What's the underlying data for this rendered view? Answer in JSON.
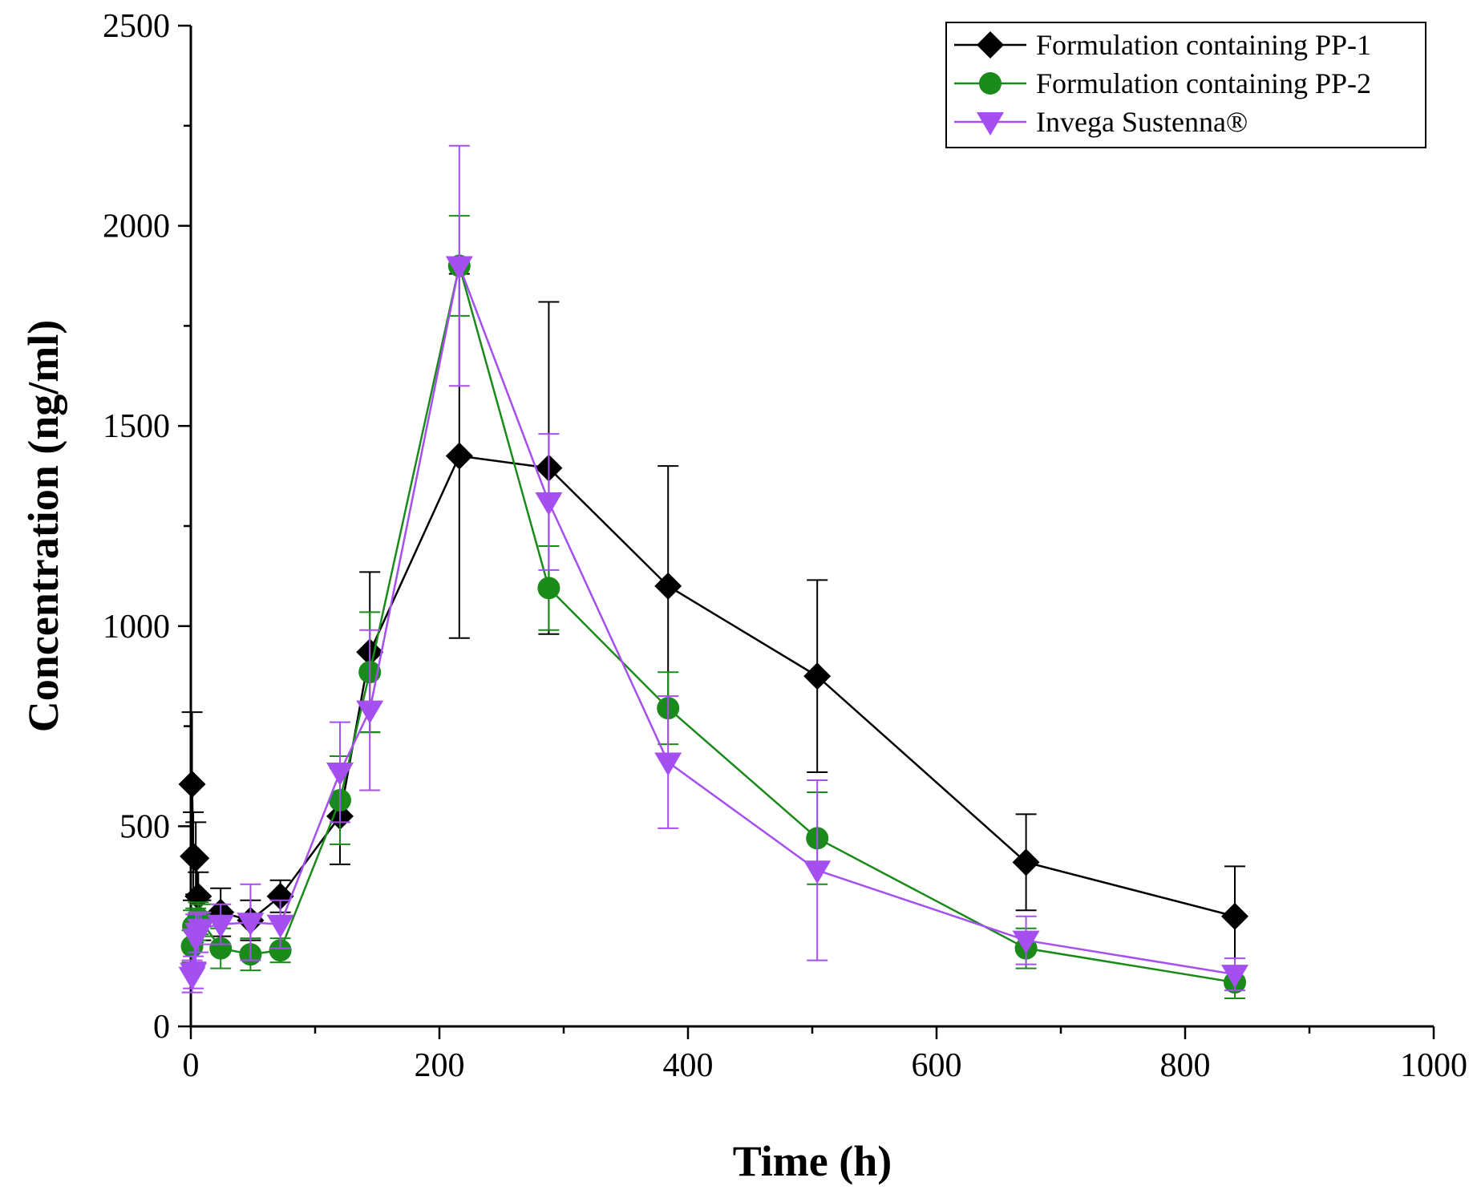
{
  "chart_data": {
    "type": "line",
    "title": "",
    "xlabel": "Time (h)",
    "ylabel": "Concentration (ng/ml)",
    "xlim": [
      0,
      1000
    ],
    "ylim": [
      0,
      2500
    ],
    "xticks": [
      0,
      200,
      400,
      600,
      800,
      1000
    ],
    "yticks": [
      0,
      500,
      1000,
      1500,
      2000,
      2500
    ],
    "x_tick_labels": [
      "0",
      "200",
      "400",
      "600",
      "800",
      "1000"
    ],
    "y_tick_labels": [
      "0",
      "500",
      "1000",
      "1500",
      "2000",
      "2500"
    ],
    "grid": false,
    "legend_position": "top-right",
    "series": [
      {
        "name": "Formulation containing PP-1",
        "color": "#000000",
        "marker": "diamond",
        "x": [
          1,
          2,
          4,
          6,
          8,
          24,
          48,
          72,
          120,
          144,
          216,
          288,
          384,
          504,
          672,
          840
        ],
        "y": [
          605,
          425,
          420,
          325,
          265,
          285,
          265,
          325,
          525,
          935,
          1425,
          1395,
          1100,
          875,
          410,
          275
        ],
        "err": [
          180,
          110,
          90,
          60,
          50,
          60,
          50,
          40,
          120,
          200,
          455,
          415,
          300,
          240,
          120,
          125
        ]
      },
      {
        "name": "Formulation containing PP-2",
        "color": "#1a8a1a",
        "marker": "circle",
        "x": [
          1,
          2,
          4,
          6,
          8,
          24,
          48,
          72,
          120,
          144,
          216,
          288,
          384,
          504,
          672,
          840
        ],
        "y": [
          200,
          250,
          255,
          270,
          265,
          195,
          180,
          190,
          565,
          885,
          1900,
          1095,
          795,
          470,
          195,
          110
        ],
        "err": [
          40,
          40,
          40,
          40,
          40,
          50,
          40,
          30,
          110,
          150,
          125,
          105,
          90,
          115,
          50,
          40
        ]
      },
      {
        "name": "Invega Sustenna®",
        "color": "#a54ff0",
        "marker": "triangle-down",
        "x": [
          1,
          2,
          4,
          6,
          8,
          24,
          48,
          72,
          120,
          144,
          216,
          288,
          384,
          504,
          672,
          840
        ],
        "y": [
          125,
          135,
          220,
          235,
          245,
          255,
          260,
          255,
          635,
          790,
          1900,
          1310,
          660,
          390,
          215,
          130
        ],
        "err": [
          40,
          40,
          60,
          50,
          40,
          50,
          95,
          60,
          125,
          200,
          300,
          170,
          165,
          225,
          60,
          40
        ]
      }
    ]
  }
}
